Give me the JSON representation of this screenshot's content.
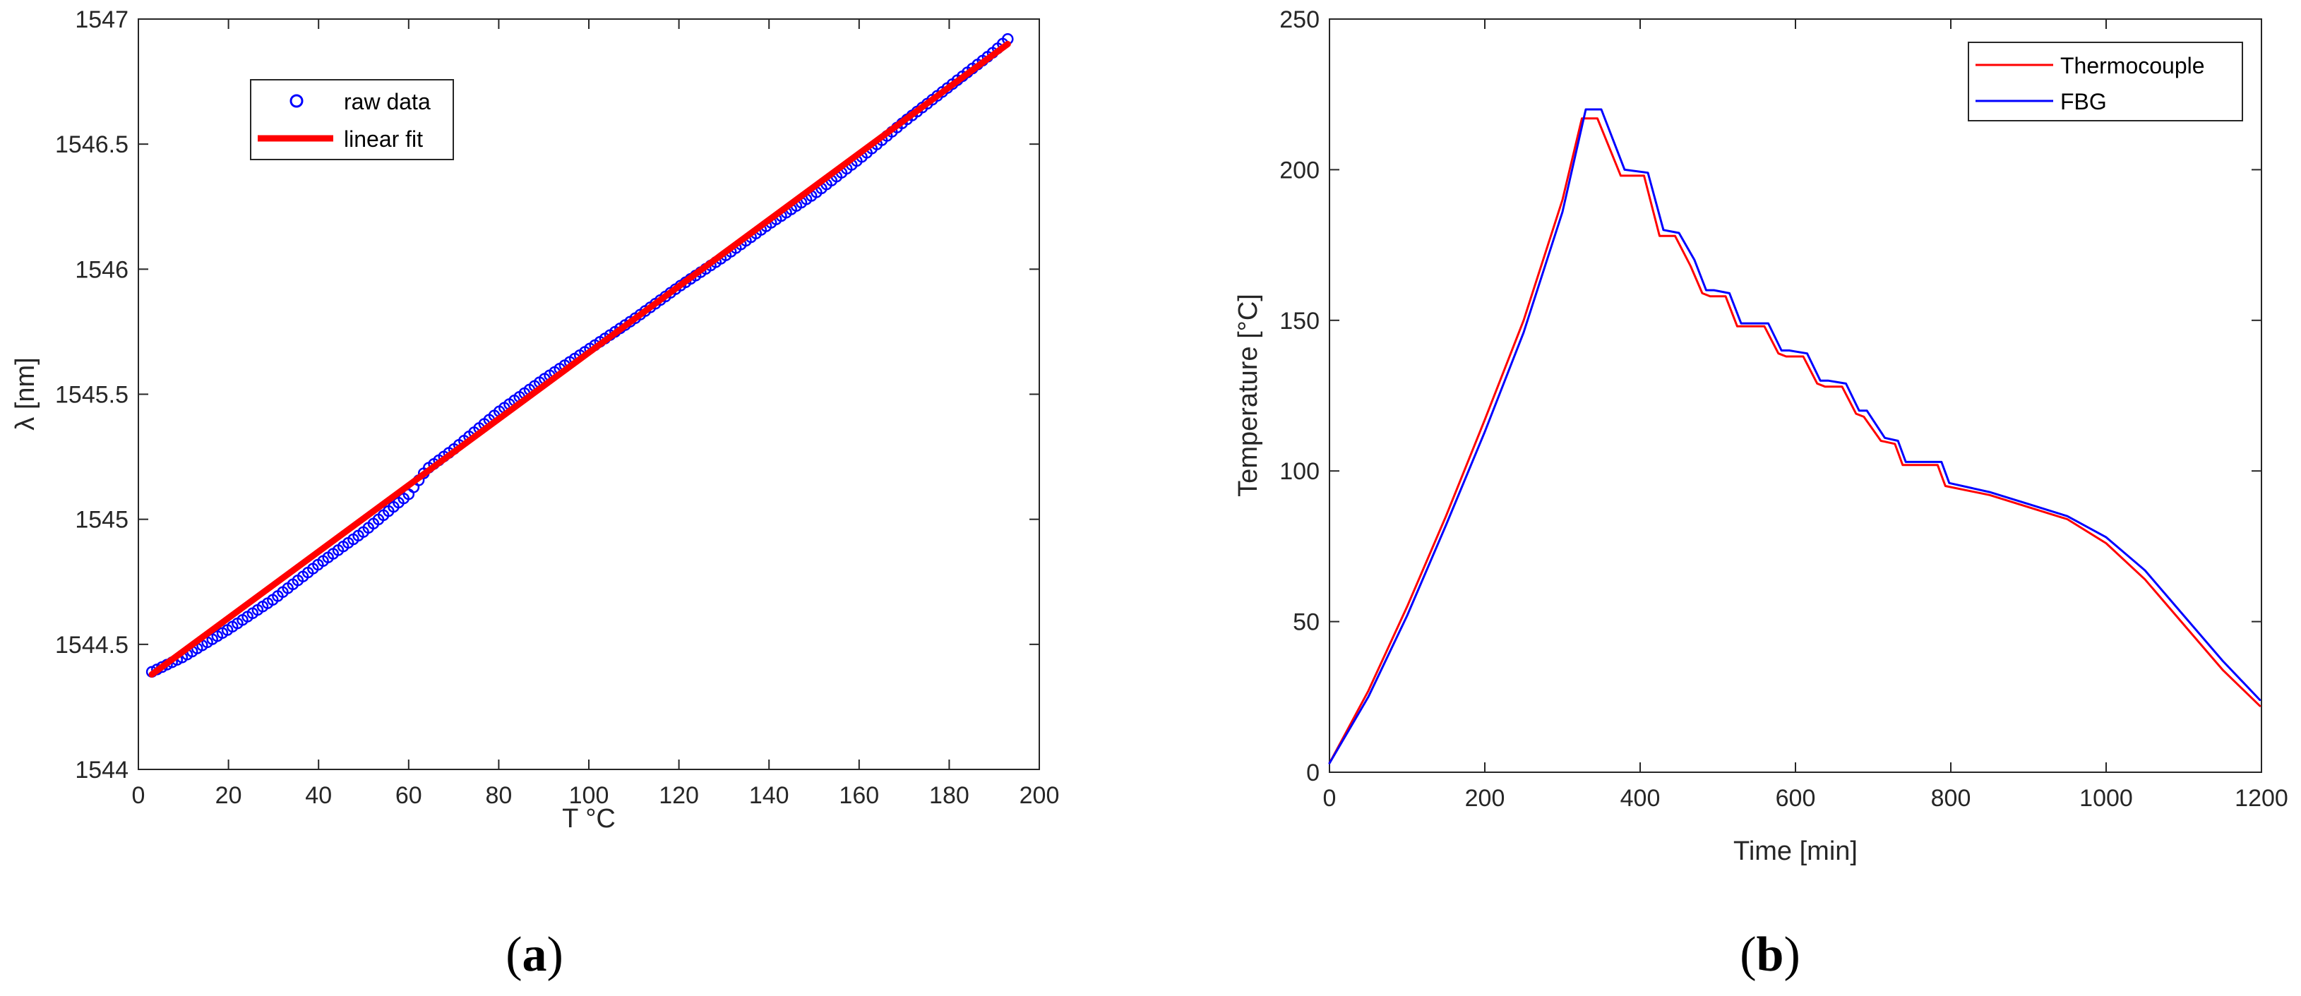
{
  "panel_labels": [
    {
      "open": "(",
      "letter": "a",
      "close": ")"
    },
    {
      "open": "(",
      "letter": "b",
      "close": ")"
    }
  ],
  "chart_data": [
    {
      "type": "scatter",
      "xlabel": "T °C",
      "ylabel": "λ [nm]",
      "xlim": [
        0,
        200
      ],
      "ylim": [
        1544,
        1547
      ],
      "xticks": [
        0,
        20,
        40,
        60,
        80,
        100,
        120,
        140,
        160,
        180,
        200
      ],
      "yticks": [
        1544,
        1544.5,
        1545,
        1545.5,
        1546,
        1546.5,
        1547
      ],
      "grid": false,
      "legend_position": "top-left",
      "series": [
        {
          "name": "raw data",
          "kind": "markers",
          "color": "#0000ff",
          "x": [
            3,
            10,
            20,
            30,
            40,
            50,
            60,
            64,
            70,
            80,
            90,
            100,
            110,
            120,
            130,
            140,
            150,
            160,
            170,
            180,
            190,
            193
          ],
          "y": [
            1544.39,
            1544.45,
            1544.56,
            1544.68,
            1544.82,
            1544.95,
            1545.1,
            1545.2,
            1545.28,
            1545.43,
            1545.56,
            1545.68,
            1545.8,
            1545.93,
            1546.05,
            1546.18,
            1546.3,
            1546.44,
            1546.59,
            1546.73,
            1546.87,
            1546.92
          ]
        },
        {
          "name": "linear fit",
          "kind": "line",
          "color": "#ff0000",
          "x": [
            3,
            193
          ],
          "y": [
            1544.38,
            1546.9
          ]
        }
      ]
    },
    {
      "type": "line",
      "xlabel": "Time [min]",
      "ylabel": "Temperature [°C]",
      "xlim": [
        0,
        1200
      ],
      "ylim": [
        0,
        250
      ],
      "xticks": [
        0,
        200,
        400,
        600,
        800,
        1000,
        1200
      ],
      "yticks": [
        0,
        50,
        100,
        150,
        200,
        250
      ],
      "grid": false,
      "legend_position": "top-right",
      "series": [
        {
          "name": "Thermocouple",
          "color": "#ff0000",
          "x": [
            0,
            50,
            100,
            150,
            200,
            250,
            300,
            325,
            345,
            375,
            405,
            425,
            445,
            465,
            480,
            490,
            510,
            525,
            535,
            560,
            578,
            588,
            610,
            628,
            638,
            660,
            678,
            688,
            710,
            728,
            738,
            760,
            783,
            793,
            850,
            900,
            950,
            1000,
            1050,
            1100,
            1150,
            1198
          ],
          "y": [
            3,
            27,
            55,
            85,
            117,
            150,
            190,
            217,
            217,
            198,
            198,
            178,
            178,
            168,
            159,
            158,
            158,
            148,
            148,
            148,
            139,
            138,
            138,
            129,
            128,
            128,
            119,
            118,
            110,
            109,
            102,
            102,
            102,
            95,
            92,
            88,
            84,
            76,
            64,
            49,
            34,
            22
          ]
        },
        {
          "name": "FBG",
          "color": "#0000ff",
          "x": [
            0,
            50,
            100,
            150,
            200,
            250,
            300,
            330,
            350,
            380,
            410,
            430,
            450,
            470,
            485,
            495,
            515,
            530,
            540,
            565,
            582,
            592,
            615,
            632,
            642,
            665,
            682,
            692,
            715,
            732,
            742,
            765,
            788,
            798,
            850,
            900,
            950,
            1000,
            1050,
            1100,
            1150,
            1198
          ],
          "y": [
            3,
            25,
            52,
            82,
            113,
            146,
            186,
            220,
            220,
            200,
            199,
            180,
            179,
            170,
            160,
            160,
            159,
            149,
            149,
            149,
            140,
            140,
            139,
            130,
            130,
            129,
            120,
            120,
            111,
            110,
            103,
            103,
            103,
            96,
            93,
            89,
            85,
            78,
            67,
            52,
            37,
            24
          ]
        }
      ]
    }
  ]
}
